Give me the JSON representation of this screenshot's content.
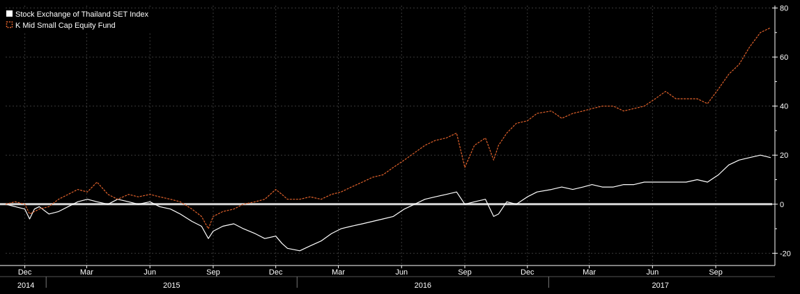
{
  "chart_data": {
    "type": "line",
    "colors": {
      "background": "#000000",
      "grid": "#3a3a3a",
      "axis": "#ffffff",
      "zero_line": "#d8d8d8",
      "set_index": "#ffffff",
      "fund": "#e2622b"
    },
    "legend": {
      "position": "top-left",
      "items": [
        {
          "label": "Stock Exchange of Thailand SET Index",
          "color": "#ffffff",
          "style": "solid"
        },
        {
          "label": "K Mid Small Cap Equity Fund",
          "color": "#e2622b",
          "style": "dashed"
        }
      ]
    },
    "y_axis": {
      "position": "right",
      "range": [
        -25,
        81
      ],
      "ticks": [
        -20,
        0,
        20,
        40,
        60,
        80
      ],
      "tick_labels": [
        "-20",
        "0",
        "20",
        "40",
        "60",
        "80"
      ]
    },
    "x_axis": {
      "range": [
        "2014-11-03",
        "2017-11-22"
      ],
      "month_ticks": [
        {
          "date": "2014-12-01",
          "label": "Dec"
        },
        {
          "date": "2015-03-01",
          "label": "Mar"
        },
        {
          "date": "2015-06-01",
          "label": "Jun"
        },
        {
          "date": "2015-09-01",
          "label": "Sep"
        },
        {
          "date": "2015-12-01",
          "label": "Dec"
        },
        {
          "date": "2016-03-01",
          "label": "Mar"
        },
        {
          "date": "2016-06-01",
          "label": "Jun"
        },
        {
          "date": "2016-09-01",
          "label": "Sep"
        },
        {
          "date": "2016-12-01",
          "label": "Dec"
        },
        {
          "date": "2017-03-01",
          "label": "Mar"
        },
        {
          "date": "2017-06-01",
          "label": "Jun"
        },
        {
          "date": "2017-09-01",
          "label": "Sep"
        }
      ],
      "years": [
        {
          "label": "2014",
          "start": "2014-11-03",
          "end": "2015-01-01"
        },
        {
          "label": "2015",
          "start": "2015-01-01",
          "end": "2016-01-01"
        },
        {
          "label": "2016",
          "start": "2016-01-01",
          "end": "2017-01-01"
        },
        {
          "label": "2017",
          "start": "2017-01-01",
          "end": "2017-11-22"
        }
      ]
    },
    "grid": true,
    "series": [
      {
        "name": "Stock Exchange of Thailand SET Index",
        "color": "#ffffff",
        "x": [
          "2014-11-03",
          "2014-11-17",
          "2014-12-01",
          "2014-12-08",
          "2014-12-15",
          "2014-12-22",
          "2015-01-05",
          "2015-01-19",
          "2015-02-02",
          "2015-02-16",
          "2015-03-02",
          "2015-03-16",
          "2015-04-01",
          "2015-04-15",
          "2015-05-01",
          "2015-05-15",
          "2015-06-01",
          "2015-06-15",
          "2015-07-01",
          "2015-07-15",
          "2015-08-01",
          "2015-08-15",
          "2015-08-25",
          "2015-09-01",
          "2015-09-15",
          "2015-10-01",
          "2015-10-15",
          "2015-11-01",
          "2015-11-15",
          "2015-12-01",
          "2015-12-10",
          "2015-12-18",
          "2016-01-05",
          "2016-01-20",
          "2016-02-05",
          "2016-02-20",
          "2016-03-05",
          "2016-03-20",
          "2016-04-05",
          "2016-04-20",
          "2016-05-05",
          "2016-05-20",
          "2016-06-05",
          "2016-06-20",
          "2016-07-05",
          "2016-07-20",
          "2016-08-05",
          "2016-08-20",
          "2016-09-01",
          "2016-09-15",
          "2016-10-01",
          "2016-10-13",
          "2016-10-20",
          "2016-11-01",
          "2016-11-15",
          "2016-12-01",
          "2016-12-15",
          "2017-01-05",
          "2017-01-20",
          "2017-02-05",
          "2017-02-20",
          "2017-03-05",
          "2017-03-20",
          "2017-04-05",
          "2017-04-20",
          "2017-05-05",
          "2017-05-20",
          "2017-06-05",
          "2017-06-20",
          "2017-07-05",
          "2017-07-20",
          "2017-08-05",
          "2017-08-20",
          "2017-09-05",
          "2017-09-20",
          "2017-10-05",
          "2017-10-20",
          "2017-11-05",
          "2017-11-20"
        ],
        "values": [
          0,
          -1,
          -2,
          -6,
          -2,
          -1,
          -4,
          -3,
          -1,
          1,
          2,
          1,
          0,
          2,
          1,
          0,
          1,
          -1,
          -2,
          -4,
          -7,
          -9,
          -14,
          -11,
          -9,
          -8,
          -10,
          -12,
          -14,
          -13,
          -16,
          -18,
          -19,
          -17,
          -15,
          -12,
          -10,
          -9,
          -8,
          -7,
          -6,
          -5,
          -2,
          0,
          2,
          3,
          4,
          5,
          0,
          1,
          2,
          -5,
          -4,
          1,
          0,
          3,
          5,
          6,
          7,
          6,
          7,
          8,
          7,
          7,
          8,
          8,
          9,
          9,
          9,
          9,
          9,
          10,
          9,
          12,
          16,
          18,
          19,
          20,
          19
        ]
      },
      {
        "name": "K Mid Small Cap Equity Fund",
        "color": "#e2622b",
        "x": [
          "2014-11-03",
          "2014-11-17",
          "2014-12-01",
          "2014-12-08",
          "2014-12-15",
          "2014-12-22",
          "2015-01-05",
          "2015-01-19",
          "2015-02-02",
          "2015-02-16",
          "2015-03-02",
          "2015-03-16",
          "2015-04-01",
          "2015-04-15",
          "2015-05-01",
          "2015-05-15",
          "2015-06-01",
          "2015-06-15",
          "2015-07-01",
          "2015-07-15",
          "2015-08-01",
          "2015-08-15",
          "2015-08-25",
          "2015-09-01",
          "2015-09-15",
          "2015-10-01",
          "2015-10-15",
          "2015-11-01",
          "2015-11-15",
          "2015-12-01",
          "2015-12-10",
          "2015-12-18",
          "2016-01-05",
          "2016-01-20",
          "2016-02-05",
          "2016-02-20",
          "2016-03-05",
          "2016-03-20",
          "2016-04-05",
          "2016-04-20",
          "2016-05-05",
          "2016-05-20",
          "2016-06-05",
          "2016-06-20",
          "2016-07-05",
          "2016-07-20",
          "2016-08-05",
          "2016-08-20",
          "2016-09-01",
          "2016-09-15",
          "2016-10-01",
          "2016-10-13",
          "2016-10-20",
          "2016-11-01",
          "2016-11-15",
          "2016-12-01",
          "2016-12-15",
          "2017-01-05",
          "2017-01-20",
          "2017-02-05",
          "2017-02-20",
          "2017-03-05",
          "2017-03-20",
          "2017-04-05",
          "2017-04-20",
          "2017-05-05",
          "2017-05-20",
          "2017-06-05",
          "2017-06-20",
          "2017-07-05",
          "2017-07-20",
          "2017-08-05",
          "2017-08-20",
          "2017-09-05",
          "2017-09-20",
          "2017-10-05",
          "2017-10-20",
          "2017-11-05",
          "2017-11-20"
        ],
        "values": [
          0,
          1,
          0,
          -4,
          -3,
          -2,
          -1,
          2,
          4,
          6,
          5,
          9,
          4,
          2,
          4,
          3,
          4,
          3,
          2,
          1,
          -2,
          -5,
          -10,
          -5,
          -3,
          -2,
          0,
          1,
          2,
          6,
          4,
          2,
          2,
          3,
          2,
          4,
          5,
          7,
          9,
          11,
          12,
          15,
          18,
          21,
          24,
          26,
          27,
          29,
          15,
          24,
          27,
          18,
          24,
          29,
          33,
          34,
          37,
          38,
          35,
          37,
          38,
          39,
          40,
          40,
          38,
          39,
          40,
          43,
          46,
          43,
          43,
          43,
          41,
          47,
          53,
          57,
          64,
          70,
          72
        ]
      }
    ]
  }
}
